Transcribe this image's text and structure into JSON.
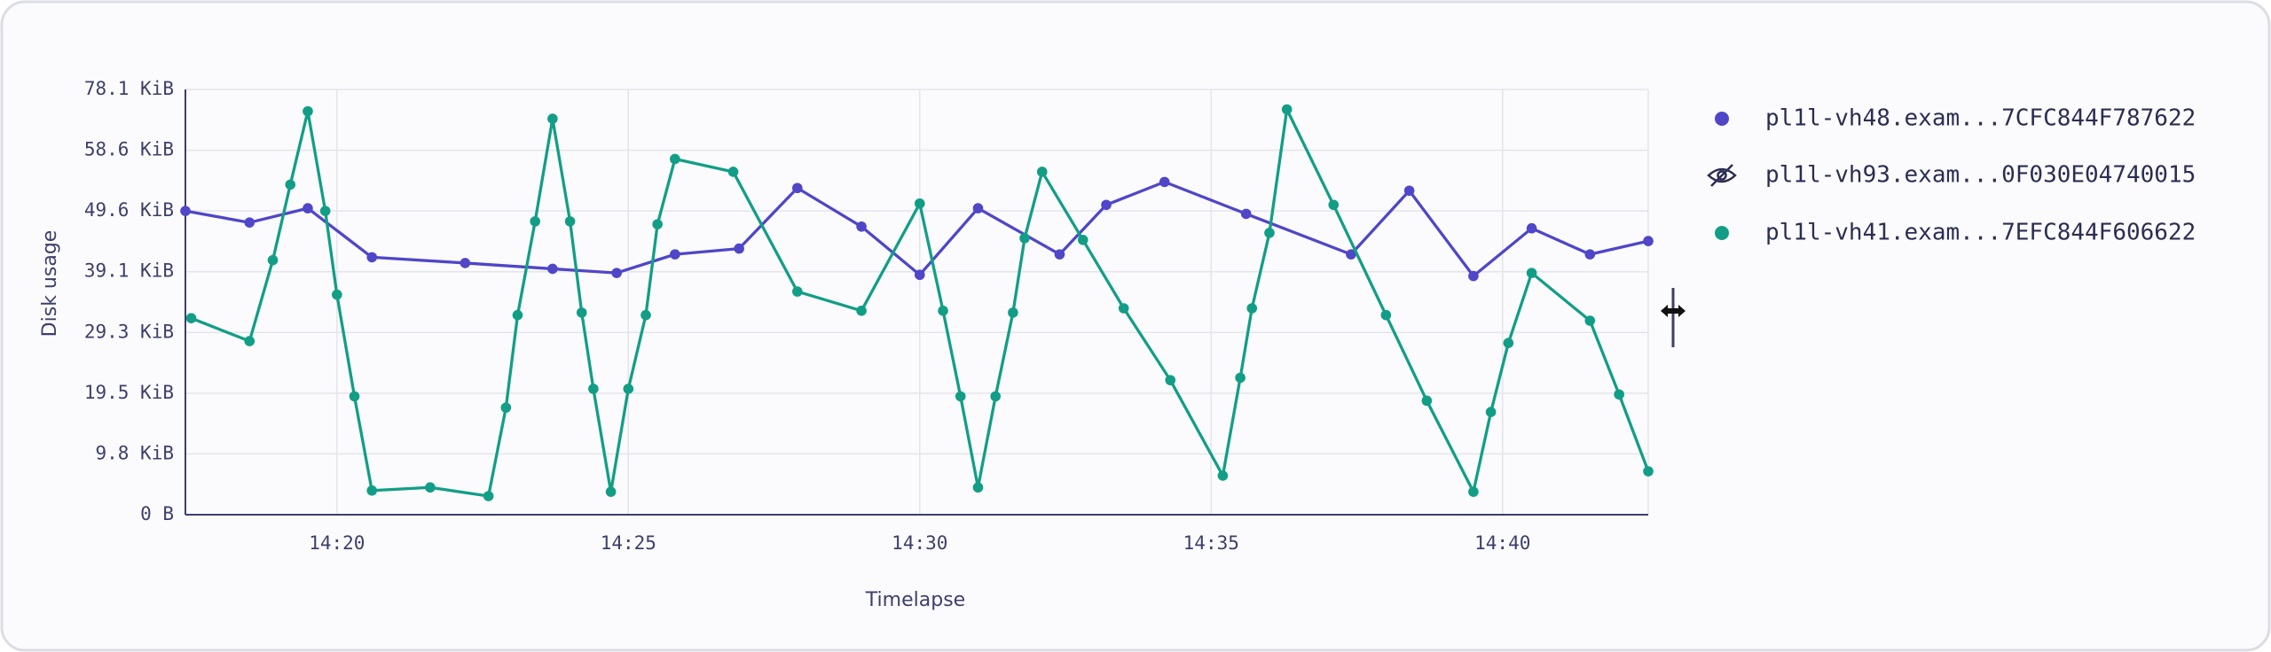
{
  "chart_data": {
    "type": "line",
    "xlabel": "Timelapse",
    "ylabel": "Disk usage",
    "xlim": [
      857.4,
      882.5
    ],
    "xticks": [
      {
        "value": 860,
        "label": "14:20"
      },
      {
        "value": 865,
        "label": "14:25"
      },
      {
        "value": 870,
        "label": "14:30"
      },
      {
        "value": 875,
        "label": "14:35"
      },
      {
        "value": 880,
        "label": "14:40"
      }
    ],
    "ylim": [
      0,
      78.1
    ],
    "yticks": [
      {
        "value": 0,
        "label": "0 B"
      },
      {
        "value": 9.8,
        "label": "9.8 KiB"
      },
      {
        "value": 19.5,
        "label": "19.5 KiB"
      },
      {
        "value": 29.3,
        "label": "29.3 KiB"
      },
      {
        "value": 39.1,
        "label": "39.1 KiB"
      },
      {
        "value": 49.6,
        "label": "49.6 KiB"
      },
      {
        "value": 58.6,
        "label": "58.6 KiB"
      },
      {
        "value": 78.1,
        "label": "78.1 KiB"
      }
    ],
    "grid": true,
    "series": [
      {
        "name": "pl1l-vh48.exam...7CFC844F787622",
        "color": "#4f46c8",
        "x": [
          857.4,
          858.5,
          859.5,
          860.6,
          862.2,
          863.7,
          864.8,
          865.8,
          866.9,
          867.9,
          869.0,
          870.0,
          871.0,
          872.4,
          873.2,
          874.2,
          875.6,
          877.4,
          878.4,
          879.5,
          880.5,
          881.5,
          882.5
        ],
        "values": [
          49.6,
          47.6,
          50.0,
          41.6,
          40.6,
          39.6,
          38.9,
          42.1,
          43.1,
          53.0,
          46.9,
          38.6,
          50.0,
          42.1,
          50.5,
          53.9,
          49.1,
          42.1,
          52.6,
          38.4,
          46.6,
          42.1,
          44.4
        ]
      },
      {
        "name": "pl1l-vh41.exam...7EFC844F606622",
        "color": "#129e86",
        "x": [
          857.5,
          858.5,
          858.9,
          859.2,
          859.5,
          859.8,
          860.0,
          860.3,
          860.6,
          861.6,
          862.6,
          862.9,
          863.1,
          863.4,
          863.7,
          864.0,
          864.2,
          864.4,
          864.7,
          865.0,
          865.3,
          865.5,
          865.8,
          866.8,
          867.9,
          869.0,
          870.0,
          870.4,
          870.7,
          871.0,
          871.3,
          871.6,
          871.8,
          872.1,
          872.8,
          873.5,
          874.3,
          875.2,
          875.5,
          875.7,
          876.0,
          876.3,
          877.1,
          878.0,
          878.7,
          879.5,
          879.8,
          880.1,
          880.5,
          881.5,
          882.0,
          882.5
        ],
        "values": [
          31.6,
          27.9,
          41.1,
          53.5,
          71.1,
          49.6,
          35.4,
          19.0,
          3.9,
          4.4,
          3.0,
          17.2,
          32.1,
          47.8,
          68.7,
          47.8,
          32.5,
          20.2,
          3.7,
          20.2,
          32.1,
          47.3,
          57.3,
          55.4,
          35.9,
          32.8,
          50.7,
          32.8,
          19.0,
          4.4,
          19.0,
          32.5,
          44.9,
          55.4,
          44.6,
          33.2,
          21.6,
          6.3,
          22.0,
          33.2,
          45.8,
          71.7,
          50.5,
          32.1,
          18.3,
          3.7,
          16.5,
          27.6,
          38.9,
          31.2,
          19.3,
          7.0
        ]
      }
    ],
    "hidden_series": [
      {
        "name": "pl1l-vh93.exam...0F030E04740015"
      }
    ]
  }
}
